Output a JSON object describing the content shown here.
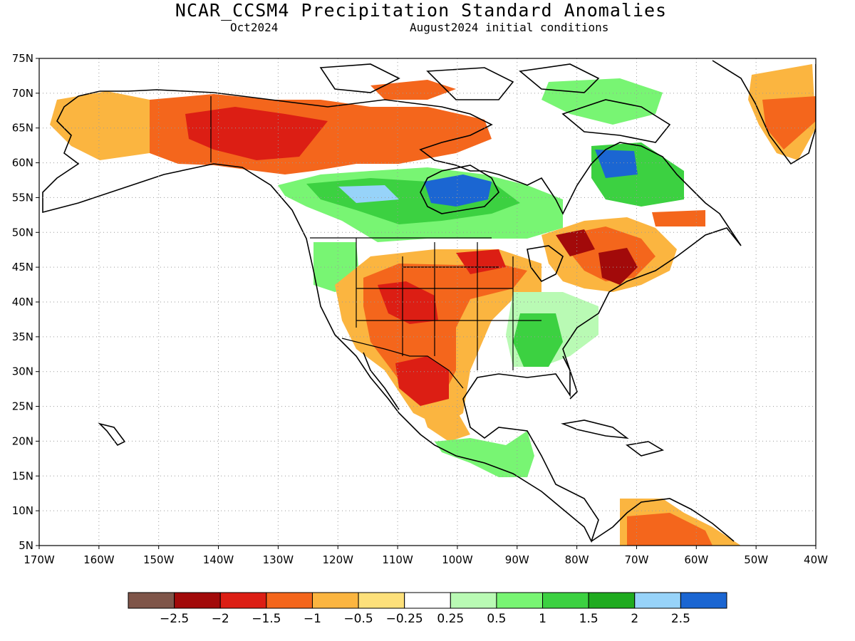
{
  "title": "NCAR_CCSM4 Precipitation Standard Anomalies",
  "subtitle_left": "Oct2024",
  "subtitle_right": "August2024 initial conditions",
  "lat_labels": [
    "75N",
    "70N",
    "65N",
    "60N",
    "55N",
    "50N",
    "45N",
    "40N",
    "35N",
    "30N",
    "25N",
    "20N",
    "15N",
    "10N",
    "5N"
  ],
  "lon_labels": [
    "170W",
    "160W",
    "150W",
    "140W",
    "130W",
    "120W",
    "110W",
    "100W",
    "90W",
    "80W",
    "70W",
    "60W",
    "50W",
    "40W"
  ],
  "colorbar": {
    "colors": [
      "#7f5549",
      "#a20a0a",
      "#dc1e14",
      "#f4661c",
      "#fbb540",
      "#fde07a",
      "#ffffff",
      "#b9fab4",
      "#78f573",
      "#3cd141",
      "#1fab1f",
      "#97d3f9",
      "#1b66d2"
    ],
    "labels": [
      "−2.5",
      "−2",
      "−1.5",
      "−1",
      "−0.5",
      "−0.25",
      "0.25",
      "0.5",
      "1",
      "1.5",
      "2",
      "2.5"
    ]
  },
  "grid": "dotted",
  "anomaly_regions": [
    {
      "area": "Alaska and Yukon interior",
      "category": "-1.5 to -0.5"
    },
    {
      "area": "Northern Canada (Nunavut mainland)",
      "category": "-2 to -1"
    },
    {
      "area": "Hudson Bay and Manitoba/Saskatchewan",
      "category": "1 to 2.5"
    },
    {
      "area": "Northern Quebec",
      "category": "1 to 2.5"
    },
    {
      "area": "Greenland",
      "category": "-1.5 to -0.5"
    },
    {
      "area": "US Southwest, Southern Rockies and Texas",
      "category": "-2 to -1"
    },
    {
      "area": "Central Plains and Upper Midwest",
      "category": "-1.5 to -0.5"
    },
    {
      "area": "Ontario / New England / Quebec south",
      "category": "-2 to -1"
    },
    {
      "area": "Pacific Northwest",
      "category": "0.5 to 1"
    },
    {
      "area": "Lower Mississippi Valley and Alabama",
      "category": "0.5 to 1.5"
    },
    {
      "area": "Southern Mexico / Central America",
      "category": "0.5 to 1"
    },
    {
      "area": "Northern South America (Venezuela/Colombia)",
      "category": "-1.5 to -0.5"
    }
  ]
}
